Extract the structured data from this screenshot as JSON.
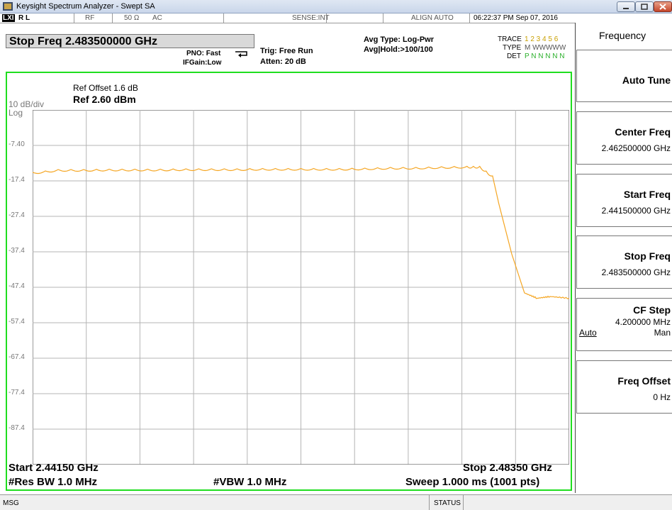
{
  "window": {
    "title": "Keysight Spectrum Analyzer - Swept SA"
  },
  "status_row": {
    "logo": "LXI",
    "rl": "R L",
    "rf": "RF",
    "impedance": "50 Ω",
    "coupling": "AC",
    "sense": "SENSE:INT",
    "align": "ALIGN AUTO",
    "datetime": "06:22:37 PM Sep 07, 2016"
  },
  "active_function": "Stop Freq 2.483500000 GHz",
  "settings": {
    "pno": "PNO: Fast",
    "ifgain": "IFGain:Low",
    "trig": "Trig: Free Run",
    "atten": "Atten: 20 dB",
    "avg_type": "Avg Type: Log-Pwr",
    "avg_hold": "Avg|Hold:>100/100"
  },
  "trace_info": {
    "trace_label": "TRACE",
    "trace_nums": "1 2 3 4 5 6",
    "type_label": "TYPE",
    "type_vals": "M WWWWW",
    "det_label": "DET",
    "det_vals": "P N N N N N"
  },
  "graph": {
    "ref_offset": "Ref Offset 1.6 dB",
    "ref_level": "Ref 2.60 dBm",
    "scale": "10 dB/div",
    "scale_type": "Log",
    "y_ticks": [
      "-7.40",
      "-17.4",
      "-27.4",
      "-37.4",
      "-47.4",
      "-57.4",
      "-67.4",
      "-77.4",
      "-87.4"
    ],
    "start": "Start 2.44150 GHz",
    "stop": "Stop 2.48350 GHz",
    "rbw": "#Res BW 1.0 MHz",
    "vbw": "#VBW 1.0 MHz",
    "sweep": "Sweep  1.000 ms (1001 pts)",
    "trace_color": "#f5a623",
    "border_color": "#1fde1f"
  },
  "chart_data": {
    "type": "line",
    "x": [
      2.4415,
      2.4435,
      2.4455,
      2.4475,
      2.4495,
      2.4515,
      2.4535,
      2.4555,
      2.4575,
      2.4595,
      2.4615,
      2.4635,
      2.4655,
      2.4675,
      2.4695,
      2.4715,
      2.4735,
      2.4755,
      2.4765,
      2.4775,
      2.478,
      2.479,
      2.48,
      2.481,
      2.482,
      2.4835
    ],
    "y": [
      -15.0,
      -14.2,
      -14.2,
      -14.1,
      -14.1,
      -14.1,
      -14.0,
      -14.0,
      -14.0,
      -13.9,
      -13.9,
      -13.9,
      -13.9,
      -13.8,
      -13.6,
      -13.6,
      -13.4,
      -13.3,
      -13.3,
      -16.0,
      -24.0,
      -38.0,
      -49.0,
      -50.5,
      -50.0,
      -50.5
    ],
    "xlim": [
      2.4415,
      2.4835
    ],
    "ylim": [
      -97.4,
      2.6
    ],
    "ylabel": "",
    "xlabel": ""
  },
  "softkeys": {
    "menu_title": "Frequency",
    "auto_tune": "Auto Tune",
    "center_freq": "Center Freq",
    "center_val": "2.462500000 GHz",
    "start_freq": "Start Freq",
    "start_val": "2.441500000 GHz",
    "stop_freq": "Stop Freq",
    "stop_val": "2.483500000 GHz",
    "cf_step": "CF Step",
    "cf_step_val": "4.200000 MHz",
    "cf_auto": "Auto",
    "cf_man": "Man",
    "freq_offset": "Freq Offset",
    "freq_offset_val": "0 Hz"
  },
  "status_bar": {
    "msg": "MSG",
    "status": "STATUS"
  }
}
